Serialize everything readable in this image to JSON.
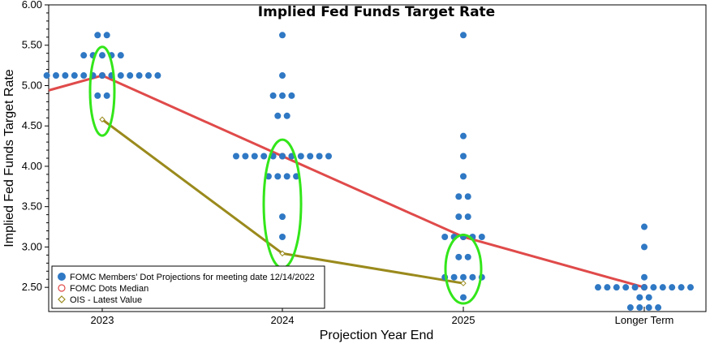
{
  "chart_data": {
    "type": "scatter",
    "title": "Implied Fed Funds Target Rate",
    "xlabel": "Projection Year End",
    "ylabel": "Implied Fed Funds Target Rate",
    "categories": [
      "2023",
      "2024",
      "2025",
      "Longer Term"
    ],
    "ylim": [
      2.2,
      6.0
    ],
    "yticks": [
      "2.50",
      "3.00",
      "3.50",
      "4.00",
      "4.50",
      "5.00",
      "5.50",
      "6.00"
    ],
    "grid": false,
    "legend_position": "bottom-left",
    "colors": {
      "dots": "#2f78c4",
      "median": "#e04a4a",
      "ois": "#9a8a1c",
      "highlight": "#33e61a"
    },
    "series": [
      {
        "name": "FOMC Members' Dot Projections for meeting date 12/14/2022",
        "points": [
          {
            "category": "2023",
            "values": [
              5.625,
              5.625,
              5.375,
              5.375,
              5.375,
              5.375,
              5.375,
              5.125,
              5.125,
              5.125,
              5.125,
              5.125,
              5.125,
              5.125,
              5.125,
              5.125,
              5.125,
              5.125,
              5.125,
              5.125,
              4.875,
              4.875
            ]
          },
          {
            "category": "2024",
            "values": [
              5.625,
              5.125,
              4.875,
              4.875,
              4.875,
              4.625,
              4.625,
              4.125,
              4.125,
              4.125,
              4.125,
              4.125,
              4.125,
              4.125,
              4.125,
              4.125,
              4.125,
              4.125,
              3.875,
              3.875,
              3.875,
              3.875,
              3.375,
              3.125
            ]
          },
          {
            "category": "2025",
            "values": [
              5.625,
              4.375,
              4.125,
              3.875,
              3.625,
              3.625,
              3.375,
              3.375,
              3.125,
              3.125,
              3.125,
              3.125,
              3.125,
              2.875,
              2.875,
              2.625,
              2.625,
              2.625,
              2.625,
              2.625,
              2.375
            ]
          },
          {
            "category": "Longer Term",
            "values": [
              3.25,
              3.0,
              2.625,
              2.5,
              2.5,
              2.5,
              2.5,
              2.5,
              2.5,
              2.5,
              2.5,
              2.5,
              2.5,
              2.5,
              2.375,
              2.375,
              2.25,
              2.25,
              2.25,
              2.25
            ]
          }
        ]
      },
      {
        "name": "FOMC Dots Median",
        "values": [
          5.125,
          4.125,
          3.125,
          2.5
        ]
      },
      {
        "name": "OIS - Latest Value",
        "values": [
          4.58,
          2.92,
          2.55,
          null
        ]
      }
    ]
  }
}
